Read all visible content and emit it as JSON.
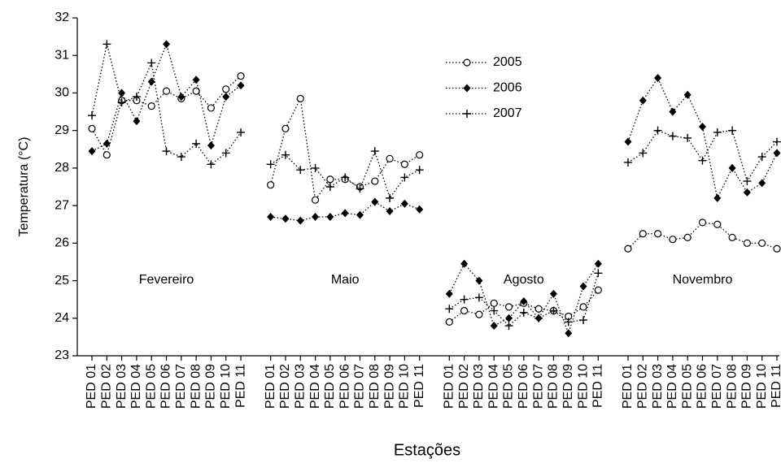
{
  "chart_data": {
    "type": "line",
    "x_label": "Estações",
    "y_label": "Temperatura (°C)",
    "categories": [
      "PED 01",
      "PED 02",
      "PED 03",
      "PED 04",
      "PED 05",
      "PED 06",
      "PED 07",
      "PED 08",
      "PED 09",
      "PED 10",
      "PED 11",
      null,
      "PED 01",
      "PED 02",
      "PED 03",
      "PED 04",
      "PED 05",
      "PED 06",
      "PED 07",
      "PED 08",
      "PED 09",
      "PED 10",
      "PED 11",
      null,
      "PED 01",
      "PED 02",
      "PED 03",
      "PED 04",
      "PED 05",
      "PED 06",
      "PED 07",
      "PED 08",
      "PED 09",
      "PED 10",
      "PED 11",
      null,
      "PED 01",
      "PED 02",
      "PED 03",
      "PED 04",
      "PED 05",
      "PED 06",
      "PED 07",
      "PED 08",
      "PED 09",
      "PED 10",
      "PED 11"
    ],
    "annotations": [
      "Fevereiro",
      "Maio",
      "Agosto",
      "Novembro"
    ],
    "series": [
      {
        "name": "2005",
        "color": "#000000",
        "marker": "circle",
        "values": [
          29.05,
          28.35,
          29.8,
          29.8,
          29.65,
          30.05,
          29.85,
          30.05,
          29.6,
          30.1,
          30.45,
          null,
          27.55,
          29.05,
          29.85,
          27.15,
          27.7,
          27.7,
          27.5,
          27.65,
          28.25,
          28.1,
          28.35,
          null,
          23.9,
          24.2,
          24.1,
          24.4,
          24.3,
          24.4,
          24.25,
          24.2,
          24.05,
          24.3,
          24.75,
          null,
          25.85,
          26.25,
          26.25,
          26.1,
          26.15,
          26.55,
          26.5,
          26.15,
          26.0,
          26.0,
          25.85
        ]
      },
      {
        "name": "2006",
        "color": "#000000",
        "marker": "diamond",
        "values": [
          28.45,
          28.65,
          30.0,
          29.25,
          30.3,
          31.3,
          29.9,
          30.35,
          28.6,
          29.9,
          30.2,
          null,
          26.7,
          26.65,
          26.6,
          26.7,
          26.7,
          26.8,
          26.75,
          27.1,
          26.85,
          27.05,
          26.9,
          null,
          24.65,
          25.45,
          25.0,
          23.8,
          24.0,
          24.45,
          24.0,
          24.65,
          23.6,
          24.85,
          25.45,
          null,
          28.7,
          29.8,
          30.4,
          29.5,
          29.95,
          29.1,
          27.2,
          28.0,
          27.35,
          27.6,
          28.4
        ]
      },
      {
        "name": "2007",
        "color": "#000000",
        "marker": "plus",
        "values": [
          29.4,
          31.3,
          29.75,
          29.9,
          30.8,
          28.45,
          28.3,
          28.65,
          28.1,
          28.4,
          28.95,
          null,
          28.1,
          28.35,
          27.95,
          28.0,
          27.5,
          27.75,
          27.45,
          28.45,
          27.2,
          27.75,
          27.95,
          null,
          24.25,
          24.5,
          24.55,
          24.2,
          23.8,
          24.15,
          24.0,
          24.2,
          23.9,
          23.95,
          25.2,
          null,
          28.15,
          28.4,
          29.0,
          28.85,
          28.8,
          28.2,
          28.95,
          29.0,
          27.65,
          28.3,
          28.7
        ]
      }
    ],
    "ylim": [
      23,
      32
    ],
    "yticks": [
      23,
      24,
      25,
      26,
      27,
      28,
      29,
      30,
      31,
      32
    ],
    "grid": false,
    "line_style": "dotted",
    "legend": "top"
  }
}
